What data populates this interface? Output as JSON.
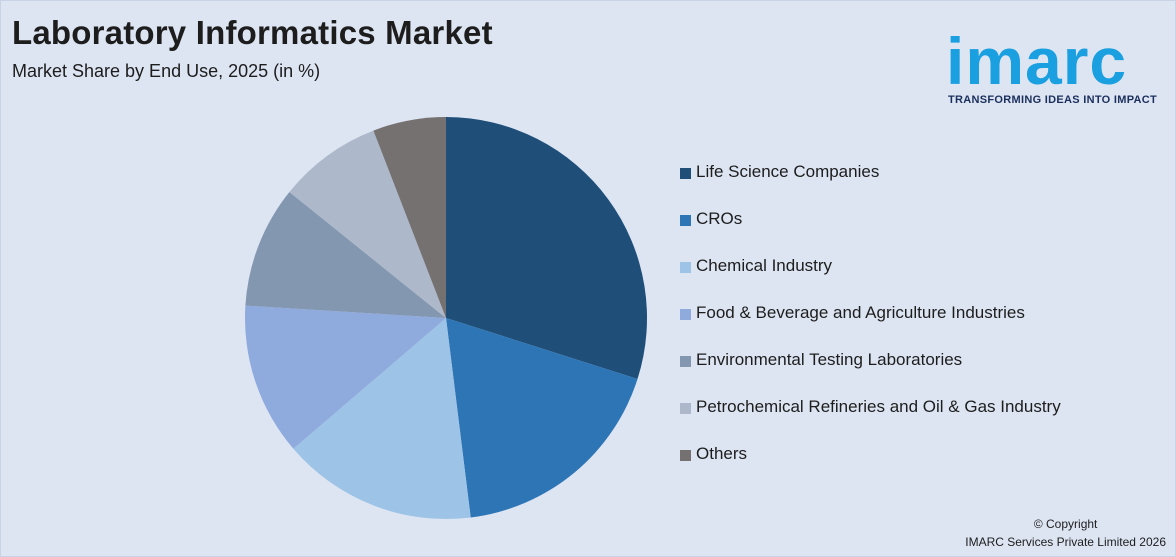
{
  "header": {
    "title": "Laboratory Informatics Market",
    "subtitle": "Market Share by End Use, 2025 (in %)"
  },
  "logo": {
    "word": "imarc",
    "tagline": "TRANSFORMING IDEAS INTO IMPACT",
    "color": "#1a9fe0"
  },
  "chart_data": {
    "type": "pie",
    "title": "Laboratory Informatics Market",
    "subtitle": "Market Share by End Use, 2025 (in %)",
    "legend_position": "right",
    "start_angle_deg": 0,
    "direction": "clockwise",
    "slices": [
      {
        "label": "Life Science Companies",
        "value": 30.5,
        "color": "#1f4e79"
      },
      {
        "label": "CROs",
        "value": 18.5,
        "color": "#2e75b6"
      },
      {
        "label": "Chemical Industry",
        "value": 16.0,
        "color": "#9dc3e6"
      },
      {
        "label": "Food & Beverage and Agriculture Industries",
        "value": 12.5,
        "color": "#8faadc"
      },
      {
        "label": "Environmental Testing Laboratories",
        "value": 10.0,
        "color": "#8497b0"
      },
      {
        "label": "Petrochemical Refineries and Oil & Gas Industry",
        "value": 8.5,
        "color": "#adb9ca"
      },
      {
        "label": "Others",
        "value": 6.0,
        "color": "#767171"
      }
    ]
  },
  "footer": {
    "copyright_line1": "© Copyright",
    "copyright_line2": "IMARC Services Private Limited 2026"
  }
}
